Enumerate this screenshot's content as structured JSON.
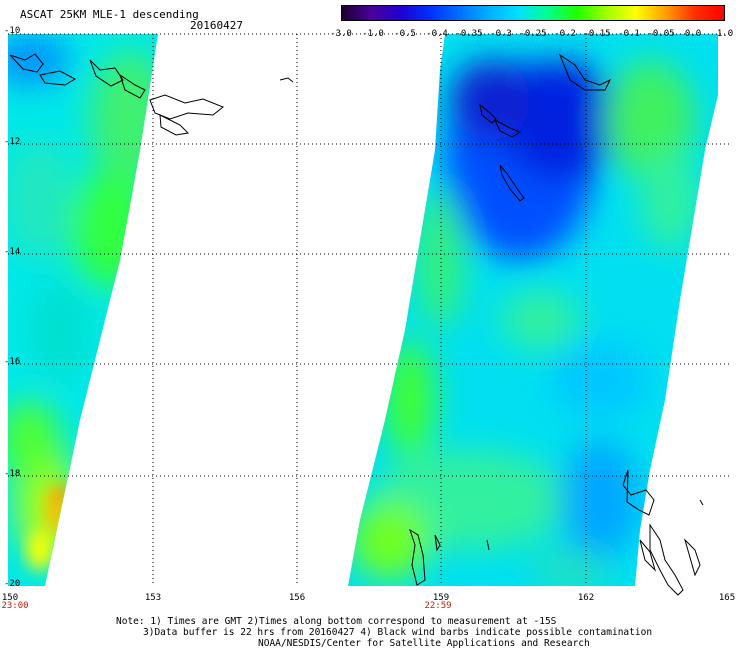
{
  "header": {
    "title": "ASCAT 25KM MLE-1 descending",
    "date": "20160427"
  },
  "colorbar": {
    "labels": [
      "-3.0",
      "-1.0",
      "-0.5",
      "-0.4",
      "-0.35",
      "-0.3",
      "-0.25",
      "-0.2",
      "-0.15",
      "-0.1",
      "-0.05",
      "0.0",
      "1.0"
    ],
    "colors": [
      "#1a0030",
      "#4a0099",
      "#2000d0",
      "#0030ff",
      "#0070ff",
      "#00b0ff",
      "#00e0ff",
      "#00ff90",
      "#20ff00",
      "#a0ff00",
      "#ffff00",
      "#ffa000",
      "#ff3000",
      "#ff0000"
    ]
  },
  "map": {
    "lat_labels": [
      "-10",
      "-12",
      "-14",
      "-16",
      "-18",
      "-20"
    ],
    "lon_labels": [
      "150",
      "153",
      "156",
      "159",
      "162",
      "165"
    ],
    "time_labels": [
      "23:00",
      "22:59"
    ]
  },
  "notes": {
    "line1": "Note: 1) Times are GMT 2)Times along bottom correspond to measurement at -15S",
    "line2": "3)Data buffer is 22 hrs from 20160427 4) Black wind barbs indicate possible contamination",
    "line3": "NOAA/NESDIS/Center for Satellite Applications and Research"
  }
}
